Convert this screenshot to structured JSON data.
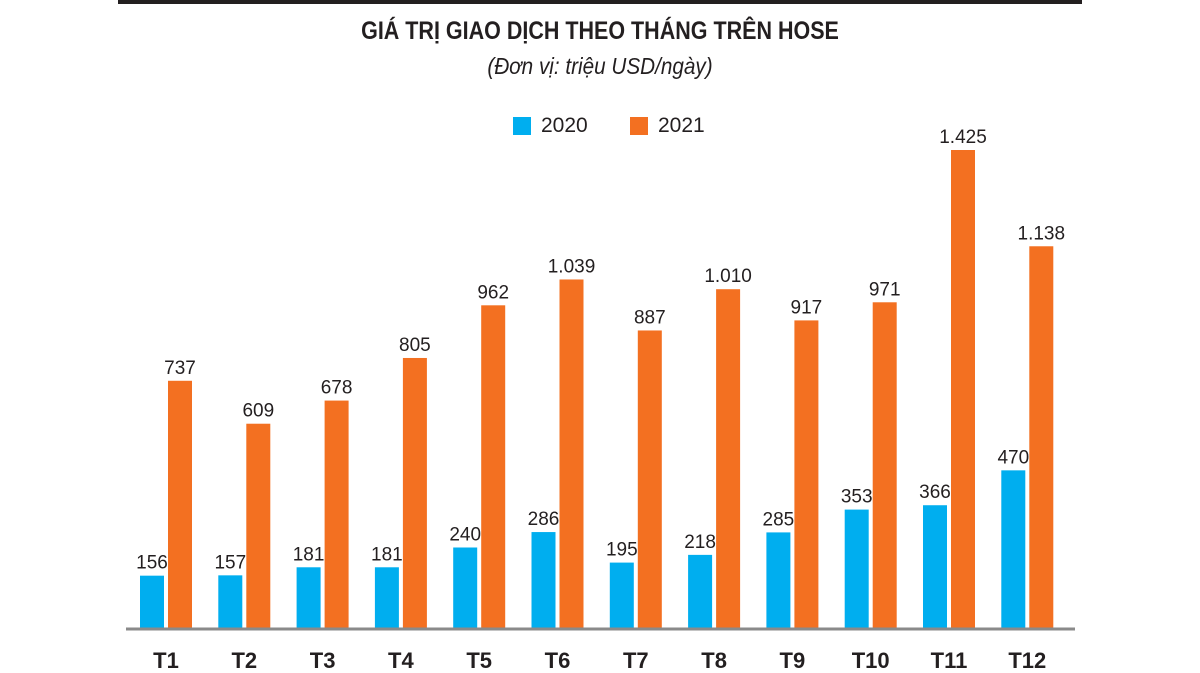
{
  "chart_data": {
    "type": "bar",
    "title": "GIÁ TRỊ GIAO DỊCH THEO THÁNG TRÊN HOSE",
    "subtitle": "(Đơn vị: triệu USD/ngày)",
    "xlabel": "",
    "ylabel": "",
    "ylim": [
      0,
      1425
    ],
    "grid": false,
    "legend_position": "top-center",
    "categories": [
      "T1",
      "T2",
      "T3",
      "T4",
      "T5",
      "T6",
      "T7",
      "T8",
      "T9",
      "T10",
      "T11",
      "T12"
    ],
    "series": [
      {
        "name": "2020",
        "color": "#00aeef",
        "values": [
          156,
          157,
          181,
          181,
          240,
          286,
          195,
          218,
          285,
          353,
          366,
          470
        ],
        "labels": [
          "156",
          "157",
          "181",
          "181",
          "240",
          "286",
          "195",
          "218",
          "285",
          "353",
          "366",
          "470"
        ]
      },
      {
        "name": "2021",
        "color": "#f37021",
        "values": [
          737,
          609,
          678,
          805,
          962,
          1039,
          887,
          1010,
          917,
          971,
          1425,
          1138
        ],
        "labels": [
          "737",
          "609",
          "678",
          "805",
          "962",
          "1.039",
          "887",
          "1.010",
          "917",
          "971",
          "1.425",
          "1.138"
        ]
      }
    ]
  },
  "colors": {
    "axis": "#8a8a8a",
    "text": "#231f20",
    "topbar": "#231f20"
  }
}
